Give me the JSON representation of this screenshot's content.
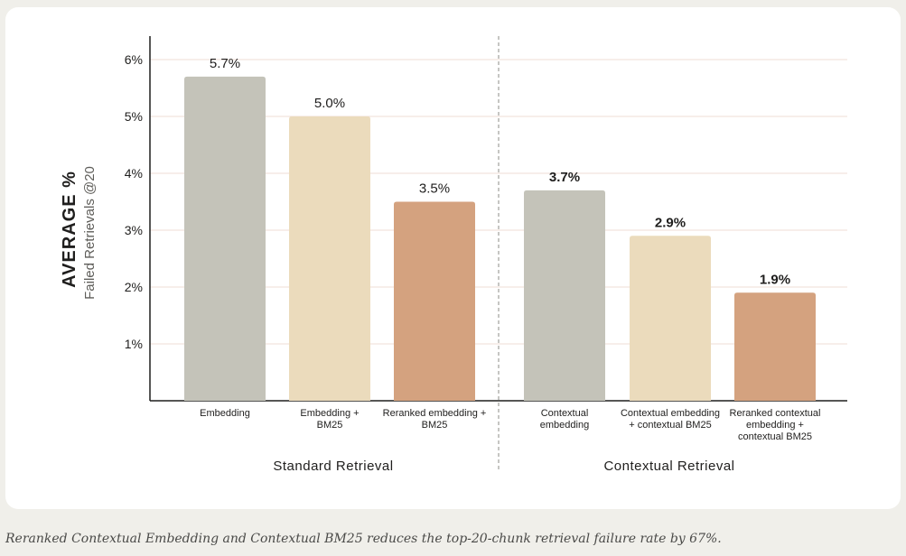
{
  "chart_data": {
    "type": "bar",
    "ylabel": "AVERAGE %",
    "ysublabel": "Failed Retrievals @20",
    "ylim": [
      0,
      7
    ],
    "yticks": [
      1,
      2,
      3,
      4,
      5,
      6
    ],
    "ytick_labels": [
      "1%",
      "2%",
      "3%",
      "4%",
      "5%",
      "6%"
    ],
    "grid": "horizontal",
    "groups": [
      {
        "name": "Standard Retrieval",
        "bars": [
          {
            "label": [
              "Embedding"
            ],
            "value": 5.7,
            "value_label": "5.7%",
            "color": "#c4c3b9"
          },
          {
            "label": [
              "Embedding +",
              "BM25"
            ],
            "value": 5.0,
            "value_label": "5.0%",
            "color": "#ebdbbc"
          },
          {
            "label": [
              "Reranked embedding +",
              "BM25"
            ],
            "value": 3.5,
            "value_label": "3.5%",
            "color": "#d4a27f"
          }
        ]
      },
      {
        "name": "Contextual Retrieval",
        "bars": [
          {
            "label": [
              "Contextual",
              "embedding"
            ],
            "value": 3.7,
            "value_label": "3.7%",
            "color": "#c4c3b9"
          },
          {
            "label": [
              "Contextual embedding",
              "+ contextual BM25"
            ],
            "value": 2.9,
            "value_label": "2.9%",
            "color": "#ebdbbc"
          },
          {
            "label": [
              "Reranked contextual",
              "embedding +",
              "contextual BM25"
            ],
            "value": 1.9,
            "value_label": "1.9%",
            "color": "#d4a27f"
          }
        ]
      }
    ]
  },
  "caption": "Reranked Contextual Embedding and Contextual BM25 reduces the top-20-chunk retrieval failure rate by 67%."
}
